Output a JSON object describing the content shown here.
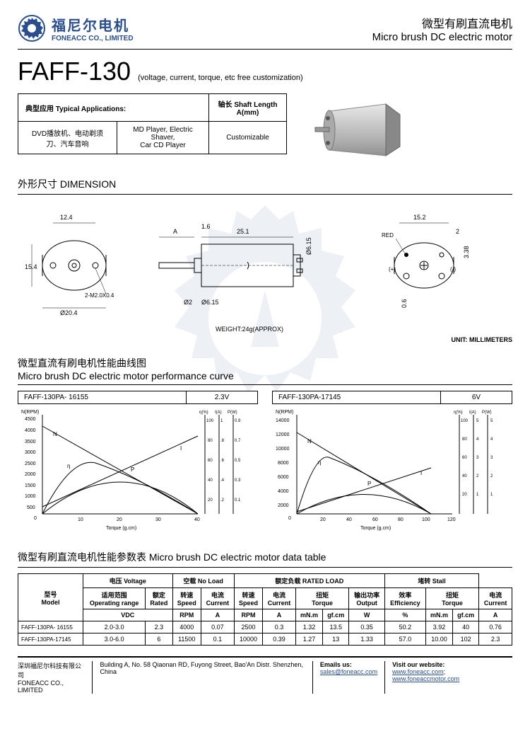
{
  "header": {
    "logo_cn": "福尼尔电机",
    "logo_en": "FONEACC CO., LIMITED",
    "category_cn": "微型有刷直流电机",
    "category_en": "Micro brush DC electric motor"
  },
  "title": {
    "model": "FAFF-130",
    "subtitle": "(voltage, current, torque, etc free customization)"
  },
  "applications": {
    "header_cn": "典型应用 Typical Applications:",
    "shaft_header": "轴长 Shaft Length A(mm)",
    "cell1": "DVD播放机、电动剃须刀、汽车音响",
    "cell2": "MD Player, Electric Shaver,\nCar CD Player",
    "cell3": "Customizable"
  },
  "dimension": {
    "title": "外形尺寸 DIMENSION",
    "weight": "WEIGHT:24g(APPROX)",
    "unit": "UNIT: MILLIMETERS",
    "values": {
      "w1": "12.4",
      "h1": "15.4",
      "d1": "Ø20.4",
      "holes": "2-M2.0X0.4",
      "A": "A",
      "len": "25.1",
      "step": "1.6",
      "shaft_d": "Ø6.15",
      "shaft_d2": "Ø2",
      "end_w": "15.2",
      "end_h": "3.38",
      "red": "RED",
      "term": "2",
      "gap": "0.6",
      "pos": "(+)",
      "neg": "(-)"
    }
  },
  "curves": {
    "title_cn": "微型直流有刷电机性能曲线图",
    "title_en": "Micro brush DC electric motor performance curve",
    "left": {
      "model": "FAFF-130PA- 16155",
      "voltage": "2.3V"
    },
    "right": {
      "model": "FAFF-130PA-17145",
      "voltage": "6V"
    },
    "axis_labels": {
      "y1": "N(RPM)",
      "y2": "η(%)",
      "y3": "I(A)",
      "y4": "P(W)",
      "x": "Torque (g.cm)"
    },
    "left_chart": {
      "n_max": 4500,
      "n_step": 500,
      "x_max": 40,
      "x_step": 10,
      "eta_max": 100,
      "i_max": 1,
      "p_max": 0.9
    },
    "right_chart": {
      "n_max": 14000,
      "n_step": 2000,
      "x_max": 120,
      "x_step": 20,
      "eta_max": 100,
      "i_max": 5,
      "p_max": 5
    }
  },
  "datatable": {
    "title": "微型有刷直流电机性能参数表 Micro brush DC electric motor data table",
    "headers": {
      "model": "型号\nModel",
      "voltage": "电压 Voltage",
      "noload": "空载 No Load",
      "rated": "额定负载 RATED LOAD",
      "stall": "堵转 Stall",
      "oprange": "适用范围\nOperating range",
      "rated_v": "额定\nRated",
      "speed": "转速\nSpeed",
      "current": "电流\nCurrent",
      "torque": "扭矩\nTorque",
      "output": "输出功率\nOutput",
      "eff": "效率\nEfficiency",
      "vdc": "VDC",
      "rpm": "RPM",
      "a": "A",
      "mnm": "mN.m",
      "gfcm": "gf.cm",
      "w": "W",
      "pct": "%"
    },
    "rows": [
      {
        "model": "FAFF-130PA- 16155",
        "range": "2.0-3.0",
        "rated": "2.3",
        "nl_speed": "4000",
        "nl_curr": "0.07",
        "r_speed": "2500",
        "r_curr": "0.3",
        "r_mnm": "1.32",
        "r_gfcm": "13.5",
        "r_w": "0.35",
        "eff": "50.2",
        "s_mnm": "3.92",
        "s_gfcm": "40",
        "s_curr": "0.76"
      },
      {
        "model": "FAFF-130PA-17145",
        "range": "3.0-6.0",
        "rated": "6",
        "nl_speed": "11500",
        "nl_curr": "0.1",
        "r_speed": "10000",
        "r_curr": "0.39",
        "r_mnm": "1.27",
        "r_gfcm": "13",
        "r_w": "1.33",
        "eff": "57.0",
        "s_mnm": "10.00",
        "s_gfcm": "102",
        "s_curr": "2.3"
      }
    ]
  },
  "footer": {
    "company_cn": "深圳福尼尔科技有限公司",
    "company_en": "FONEACC CO., LIMITED",
    "address": "Building A, No. 58 Qiaonan RD, Fuyong Street, Bao'An Distr. Shenzhen, China",
    "email_label": "Emails us:",
    "email": "sales@foneacc.com",
    "web_label": "Visit our website:",
    "web1": "www.foneacc.com",
    "web2": "www.foneaccmotor.com"
  },
  "colors": {
    "brand": "#2a4d8f",
    "border": "#000000",
    "motor_body": "#c8c8c8",
    "motor_dark": "#888888"
  }
}
